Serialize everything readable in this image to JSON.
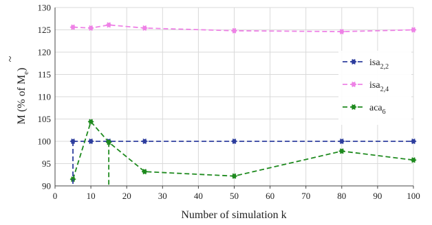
{
  "chart_data": {
    "type": "line",
    "xlabel": "Number of simulation k",
    "ylabel": {
      "base": "M",
      "accent": "~",
      "middle": " (% of M",
      "sub": "e",
      "end": ")"
    },
    "xlim": [
      0,
      100
    ],
    "ylim": [
      90,
      130
    ],
    "xticks": [
      "0",
      "10",
      "20",
      "30",
      "40",
      "50",
      "60",
      "70",
      "80",
      "90",
      "100"
    ],
    "yticks": [
      "90",
      "95",
      "100",
      "105",
      "110",
      "115",
      "120",
      "125",
      "130"
    ],
    "grid": true,
    "legend_position": "right",
    "x": [
      5,
      10,
      15,
      25,
      50,
      80,
      100
    ],
    "series": [
      {
        "name": "isa",
        "subscript": "2,2",
        "color": "#2e3e9e",
        "values": [
          100,
          100,
          100,
          100,
          100,
          100,
          100
        ]
      },
      {
        "name": "isa",
        "subscript": "2,4",
        "color": "#ee82e6",
        "values": [
          125.6,
          125.4,
          126.1,
          125.4,
          124.8,
          124.6,
          125.0
        ]
      },
      {
        "name": "aca",
        "subscript": "6",
        "color": "#1e8a1e",
        "values": [
          91.5,
          104.4,
          99.8,
          93.2,
          92.2,
          97.8,
          95.8
        ]
      }
    ]
  }
}
